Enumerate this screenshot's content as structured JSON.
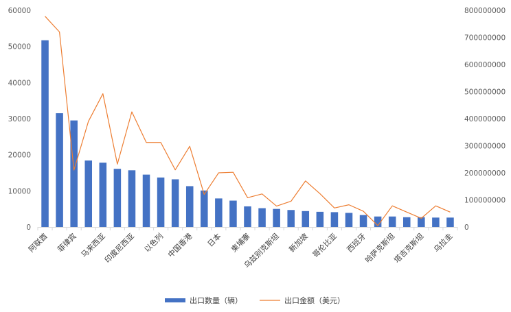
{
  "chart_data": {
    "type": "bar",
    "combo": "bar+line",
    "categories": [
      "阿联酋",
      "",
      "菲律宾",
      "",
      "马来西亚",
      "",
      "印度尼西亚",
      "",
      "以色列",
      "",
      "中国香港",
      "",
      "日本",
      "",
      "柬埔寨",
      "",
      "乌兹别克斯坦",
      "",
      "新加坡",
      "",
      "哥伦比亚",
      "",
      "西班牙",
      "",
      "哈萨克斯坦",
      "",
      "塔吉克斯坦",
      "",
      "乌拉圭"
    ],
    "series": [
      {
        "name": "出口数量（辆）",
        "type": "bar",
        "axis": "left",
        "color": "#4472C4",
        "values": [
          51700,
          31500,
          29500,
          18400,
          17800,
          16100,
          15700,
          14500,
          13700,
          13200,
          11300,
          10100,
          7900,
          7300,
          5700,
          5200,
          5000,
          4700,
          4400,
          4200,
          4100,
          3900,
          3300,
          2900,
          2900,
          2700,
          2700,
          2600,
          2600
        ]
      },
      {
        "name": "出口金额（美元）",
        "type": "line",
        "axis": "right",
        "color": "#ED7D31",
        "values": [
          778000000,
          720000000,
          210000000,
          390000000,
          492000000,
          232000000,
          425000000,
          312000000,
          312000000,
          211000000,
          298000000,
          120000000,
          200000000,
          202000000,
          108000000,
          122000000,
          77000000,
          95000000,
          170000000,
          123000000,
          70000000,
          82000000,
          58000000,
          5000000,
          78000000,
          55000000,
          32000000,
          78000000,
          55000000
        ]
      }
    ],
    "y_left": {
      "ticks": [
        "0",
        "10000",
        "20000",
        "30000",
        "40000",
        "50000",
        "60000"
      ],
      "ylim": [
        0,
        60000
      ]
    },
    "y_right": {
      "ticks": [
        "0",
        "100000000",
        "200000000",
        "300000000",
        "400000000",
        "500000000",
        "600000000",
        "700000000",
        "800000000"
      ],
      "ylim": [
        0,
        800000000
      ]
    },
    "legend_position": "bottom",
    "grid": false
  }
}
